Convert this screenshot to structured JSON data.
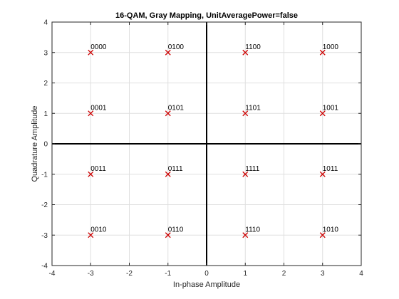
{
  "chart_data": {
    "type": "scatter",
    "title": "16-QAM, Gray Mapping, UnitAveragePower=false",
    "xlabel": "In-phase Amplitude",
    "ylabel": "Quadrature Amplitude",
    "xlim": [
      -4,
      4
    ],
    "ylim": [
      -4,
      4
    ],
    "xticks": [
      "-4",
      "-3",
      "-2",
      "-1",
      "0",
      "1",
      "2",
      "3",
      "4"
    ],
    "yticks": [
      "-4",
      "-3",
      "-2",
      "-1",
      "0",
      "1",
      "2",
      "3",
      "4"
    ],
    "grid": true,
    "marker": "x",
    "marker_color": "#cc0000",
    "points": [
      {
        "x": -3,
        "y": 3,
        "label": "0000"
      },
      {
        "x": -1,
        "y": 3,
        "label": "0100"
      },
      {
        "x": 1,
        "y": 3,
        "label": "1100"
      },
      {
        "x": 3,
        "y": 3,
        "label": "1000"
      },
      {
        "x": -3,
        "y": 1,
        "label": "0001"
      },
      {
        "x": -1,
        "y": 1,
        "label": "0101"
      },
      {
        "x": 1,
        "y": 1,
        "label": "1101"
      },
      {
        "x": 3,
        "y": 1,
        "label": "1001"
      },
      {
        "x": -3,
        "y": -1,
        "label": "0011"
      },
      {
        "x": -1,
        "y": -1,
        "label": "0111"
      },
      {
        "x": 1,
        "y": -1,
        "label": "1111"
      },
      {
        "x": 3,
        "y": -1,
        "label": "1011"
      },
      {
        "x": -3,
        "y": -3,
        "label": "0010"
      },
      {
        "x": -1,
        "y": -3,
        "label": "0110"
      },
      {
        "x": 1,
        "y": -3,
        "label": "1110"
      },
      {
        "x": 3,
        "y": -3,
        "label": "1010"
      }
    ]
  }
}
